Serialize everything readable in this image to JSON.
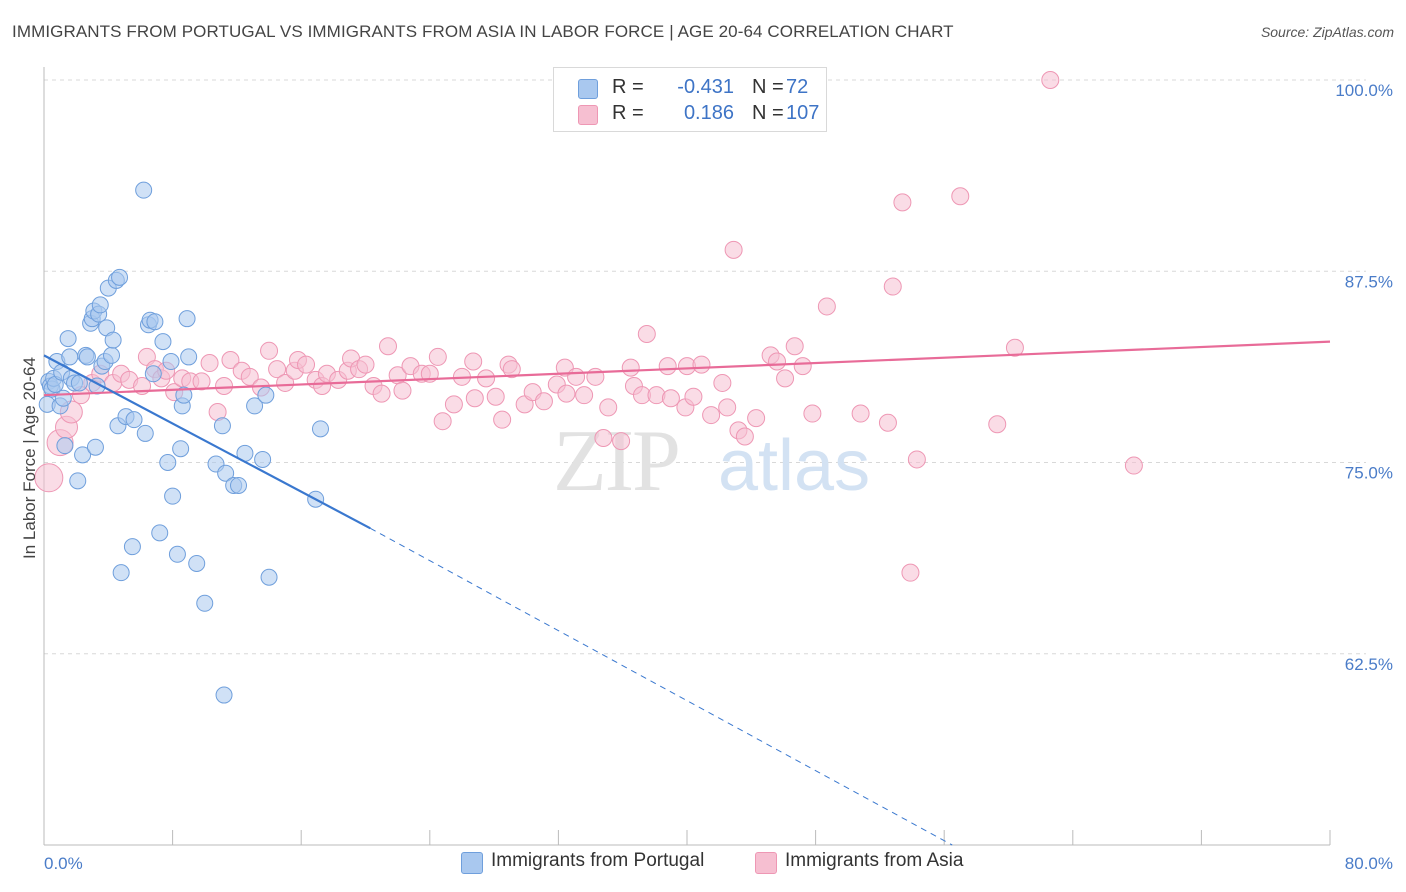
{
  "title": "IMMIGRANTS FROM PORTUGAL VS IMMIGRANTS FROM ASIA IN LABOR FORCE | AGE 20-64 CORRELATION CHART",
  "source": "Source: ZipAtlas.com",
  "watermark": {
    "zip": "ZIP",
    "atlas": "atlas"
  },
  "legend": {
    "r_label": "R =",
    "n_label": "N =",
    "rows": [
      {
        "r": "-0.431",
        "n": "72"
      },
      {
        "r": "0.186",
        "n": "107"
      }
    ]
  },
  "colors": {
    "portugal_fill": "#a9c8ef",
    "portugal_stroke": "#6f9fdc",
    "portugal_line": "#3a78cf",
    "asia_fill": "#f6bfd1",
    "asia_stroke": "#ee97b4",
    "asia_line": "#e86b98",
    "tick": "#4a7cc8",
    "grid": "#d8d8d8"
  },
  "chart_data": {
    "type": "scatter",
    "title": "IMMIGRANTS FROM PORTUGAL VS IMMIGRANTS FROM ASIA IN LABOR FORCE | AGE 20-64 CORRELATION CHART",
    "xlabel": "",
    "ylabel": "In Labor Force | Age 20-64",
    "xlim": [
      0,
      80
    ],
    "ylim": [
      50,
      101
    ],
    "x_tick_labels": [
      "0.0%",
      "80.0%"
    ],
    "y_ticks": [
      62.5,
      75.0,
      87.5,
      100.0
    ],
    "y_tick_labels": [
      "62.5%",
      "75.0%",
      "87.5%",
      "100.0%"
    ],
    "grid": true,
    "series": [
      {
        "name": "Immigrants from Portugal",
        "r": -0.431,
        "n": 72,
        "trend": {
          "x0": 0,
          "y0": 82.0,
          "x1": 20.3,
          "y1": 70.7,
          "dash_to_x": 56.5,
          "dash_to_y": 50.0
        },
        "points": [
          [
            0.2,
            78.8
          ],
          [
            0.3,
            80.3
          ],
          [
            0.4,
            80.0
          ],
          [
            0.5,
            79.8
          ],
          [
            0.6,
            80.5
          ],
          [
            0.7,
            80.1
          ],
          [
            0.8,
            81.6
          ],
          [
            1.0,
            78.7
          ],
          [
            1.1,
            80.9
          ],
          [
            1.2,
            79.2
          ],
          [
            1.3,
            76.1
          ],
          [
            1.5,
            83.1
          ],
          [
            1.6,
            81.9
          ],
          [
            1.7,
            80.5
          ],
          [
            1.9,
            80.2
          ],
          [
            2.1,
            73.8
          ],
          [
            2.2,
            80.2
          ],
          [
            2.4,
            75.5
          ],
          [
            2.6,
            82.0
          ],
          [
            2.7,
            81.9
          ],
          [
            2.9,
            84.1
          ],
          [
            3.0,
            84.4
          ],
          [
            3.1,
            84.9
          ],
          [
            3.2,
            76.0
          ],
          [
            3.3,
            80.0
          ],
          [
            3.4,
            84.7
          ],
          [
            3.5,
            85.3
          ],
          [
            3.6,
            81.3
          ],
          [
            3.8,
            81.6
          ],
          [
            3.9,
            83.8
          ],
          [
            4.0,
            86.4
          ],
          [
            4.2,
            82.0
          ],
          [
            4.3,
            83.0
          ],
          [
            4.5,
            86.9
          ],
          [
            4.6,
            77.4
          ],
          [
            4.7,
            87.1
          ],
          [
            4.8,
            67.8
          ],
          [
            5.1,
            78.0
          ],
          [
            5.5,
            69.5
          ],
          [
            5.6,
            77.8
          ],
          [
            6.2,
            92.8
          ],
          [
            6.3,
            76.9
          ],
          [
            6.5,
            84.0
          ],
          [
            6.6,
            84.3
          ],
          [
            6.8,
            80.8
          ],
          [
            6.9,
            84.2
          ],
          [
            7.2,
            70.4
          ],
          [
            7.4,
            82.9
          ],
          [
            7.7,
            75.0
          ],
          [
            7.9,
            81.6
          ],
          [
            8.0,
            72.8
          ],
          [
            8.3,
            69.0
          ],
          [
            8.5,
            75.9
          ],
          [
            8.6,
            78.7
          ],
          [
            8.7,
            79.4
          ],
          [
            8.9,
            84.4
          ],
          [
            9.0,
            81.9
          ],
          [
            9.5,
            68.4
          ],
          [
            10.0,
            65.8
          ],
          [
            10.7,
            74.9
          ],
          [
            11.1,
            77.4
          ],
          [
            11.3,
            74.3
          ],
          [
            11.2,
            59.8
          ],
          [
            11.8,
            73.5
          ],
          [
            12.1,
            73.5
          ],
          [
            12.5,
            75.6
          ],
          [
            13.1,
            78.7
          ],
          [
            13.6,
            75.2
          ],
          [
            13.8,
            79.4
          ],
          [
            14.0,
            67.5
          ],
          [
            16.9,
            72.6
          ],
          [
            17.2,
            77.2
          ]
        ]
      },
      {
        "name": "Immigrants from Asia",
        "r": 0.186,
        "n": 107,
        "trend": {
          "x0": 0,
          "y0": 79.4,
          "x1": 80.0,
          "y1": 82.9
        },
        "points": [
          [
            0.3,
            74.0
          ],
          [
            1.0,
            76.3
          ],
          [
            1.4,
            77.3
          ],
          [
            1.7,
            78.3
          ],
          [
            2.3,
            79.4
          ],
          [
            3.0,
            80.2
          ],
          [
            3.5,
            80.8
          ],
          [
            4.3,
            80.2
          ],
          [
            4.8,
            80.8
          ],
          [
            5.3,
            80.4
          ],
          [
            6.1,
            80.0
          ],
          [
            6.4,
            81.9
          ],
          [
            6.9,
            81.1
          ],
          [
            7.3,
            80.5
          ],
          [
            7.6,
            81.0
          ],
          [
            8.1,
            79.6
          ],
          [
            8.6,
            80.5
          ],
          [
            9.1,
            80.3
          ],
          [
            9.8,
            80.3
          ],
          [
            10.3,
            81.5
          ],
          [
            10.8,
            78.3
          ],
          [
            11.2,
            80.0
          ],
          [
            11.6,
            81.7
          ],
          [
            12.3,
            81.0
          ],
          [
            12.8,
            80.6
          ],
          [
            13.5,
            79.9
          ],
          [
            14.0,
            82.3
          ],
          [
            14.5,
            81.1
          ],
          [
            15.0,
            80.2
          ],
          [
            15.6,
            81.0
          ],
          [
            15.8,
            81.7
          ],
          [
            16.3,
            81.4
          ],
          [
            16.9,
            80.4
          ],
          [
            17.3,
            80.0
          ],
          [
            17.6,
            80.8
          ],
          [
            18.3,
            80.4
          ],
          [
            18.9,
            81.0
          ],
          [
            19.1,
            81.8
          ],
          [
            19.6,
            81.1
          ],
          [
            20.0,
            81.4
          ],
          [
            20.5,
            80.0
          ],
          [
            21.0,
            79.5
          ],
          [
            21.4,
            82.6
          ],
          [
            22.0,
            80.7
          ],
          [
            22.3,
            79.7
          ],
          [
            22.8,
            81.3
          ],
          [
            23.5,
            80.8
          ],
          [
            24.0,
            80.8
          ],
          [
            24.5,
            81.9
          ],
          [
            24.8,
            77.7
          ],
          [
            25.5,
            78.8
          ],
          [
            26.0,
            80.6
          ],
          [
            26.7,
            81.6
          ],
          [
            26.8,
            79.2
          ],
          [
            27.5,
            80.5
          ],
          [
            28.1,
            79.3
          ],
          [
            28.5,
            77.8
          ],
          [
            28.9,
            81.4
          ],
          [
            29.1,
            81.1
          ],
          [
            29.9,
            78.8
          ],
          [
            30.4,
            79.6
          ],
          [
            31.1,
            79.0
          ],
          [
            31.9,
            80.1
          ],
          [
            32.4,
            81.2
          ],
          [
            32.5,
            79.5
          ],
          [
            33.1,
            80.6
          ],
          [
            33.6,
            79.4
          ],
          [
            34.3,
            80.6
          ],
          [
            34.8,
            76.6
          ],
          [
            35.1,
            78.6
          ],
          [
            35.9,
            76.4
          ],
          [
            36.5,
            81.2
          ],
          [
            36.7,
            80.0
          ],
          [
            37.2,
            79.4
          ],
          [
            37.5,
            83.4
          ],
          [
            38.1,
            79.4
          ],
          [
            38.8,
            81.3
          ],
          [
            39.0,
            79.2
          ],
          [
            39.9,
            78.6
          ],
          [
            40.0,
            81.3
          ],
          [
            40.4,
            79.3
          ],
          [
            40.9,
            81.4
          ],
          [
            41.5,
            78.1
          ],
          [
            42.2,
            80.2
          ],
          [
            42.5,
            78.6
          ],
          [
            42.9,
            88.9
          ],
          [
            43.2,
            77.1
          ],
          [
            43.6,
            76.7
          ],
          [
            44.3,
            77.9
          ],
          [
            45.2,
            82.0
          ],
          [
            45.6,
            81.6
          ],
          [
            46.1,
            80.5
          ],
          [
            46.7,
            82.6
          ],
          [
            47.2,
            81.3
          ],
          [
            47.8,
            78.2
          ],
          [
            48.7,
            85.2
          ],
          [
            50.8,
            78.2
          ],
          [
            52.5,
            77.6
          ],
          [
            52.8,
            86.5
          ],
          [
            53.4,
            92.0
          ],
          [
            53.9,
            67.8
          ],
          [
            54.3,
            75.2
          ],
          [
            57.0,
            92.4
          ],
          [
            59.3,
            77.5
          ],
          [
            60.4,
            82.5
          ],
          [
            62.6,
            100.0
          ],
          [
            67.8,
            74.8
          ]
        ]
      }
    ]
  },
  "bottom_legend": {
    "items": [
      {
        "label": "Immigrants from Portugal"
      },
      {
        "label": "Immigrants from Asia"
      }
    ]
  }
}
